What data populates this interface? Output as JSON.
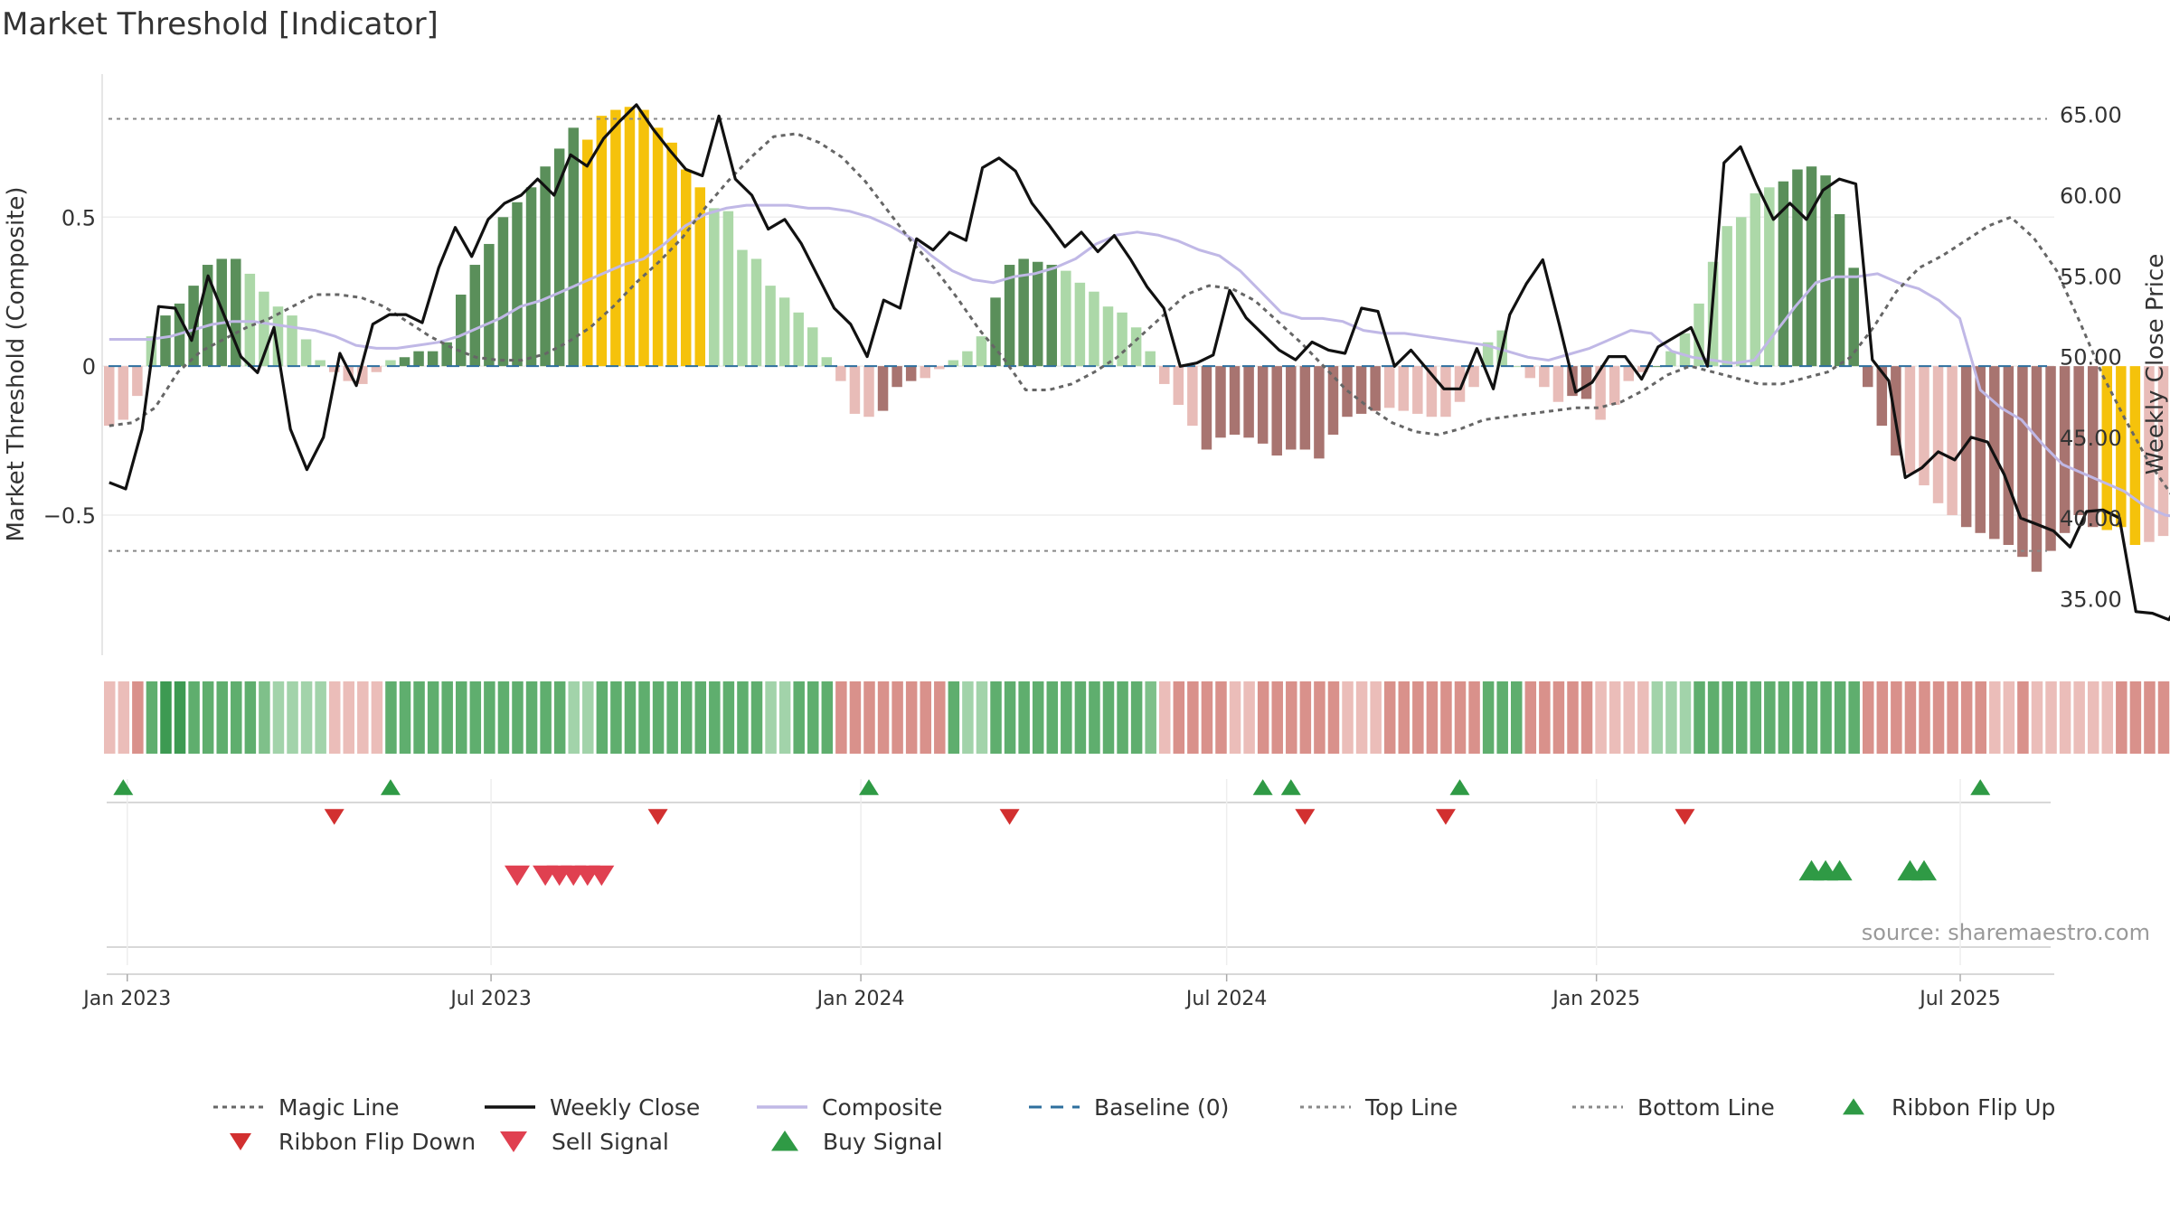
{
  "title": "Market Threshold [Indicator]",
  "source": "source: sharemaestro.com",
  "colors": {
    "strong_up": "#5a8f5a",
    "weak_up": "#acd8a8",
    "strong_down": "#a87470",
    "weak_down": "#e8bcb8",
    "extreme": "#f5c20b",
    "weekly_close": "#111111",
    "composite": "#c0b8e6",
    "magic": "#666666",
    "baseline": "#2e6f9e",
    "thresholds": "#888888",
    "signal_up": "#2f9a45",
    "signal_down": "#d23030",
    "sell": "#e04050"
  },
  "chart_data": {
    "type": "bar",
    "x_start": "2022-12-23",
    "x_step_days": 7,
    "x_ticks": [
      "Jan 2023",
      "Jul 2023",
      "Jan 2024",
      "Jul 2024",
      "Jan 2025",
      "Jul 2025"
    ],
    "x_tick_dates": [
      "2023-01-01",
      "2023-07-01",
      "2024-01-01",
      "2024-07-01",
      "2025-01-01",
      "2025-07-01"
    ],
    "ylabel_left": "Market Threshold (Composite)",
    "ylabel_right": "Weekly Close Price",
    "ylim_left": [
      -0.97,
      0.98
    ],
    "ylim_right": [
      31.5,
      67.5
    ],
    "yticks_left": [
      0.5,
      0,
      -0.5
    ],
    "yticks_left_labels": [
      "0.5",
      "0",
      "−0.5"
    ],
    "yticks_right": [
      65,
      60,
      55,
      50,
      45,
      40,
      35
    ],
    "yticks_right_labels": [
      "65.00",
      "60.00",
      "55.00",
      "50.00",
      "45.00",
      "40.00",
      "35.00"
    ],
    "top_line": 0.83,
    "bottom_line": -0.62,
    "grid": true,
    "bar_values": [
      -0.2,
      -0.18,
      -0.1,
      0.1,
      0.17,
      0.21,
      0.27,
      0.34,
      0.36,
      0.36,
      0.31,
      0.25,
      0.2,
      0.17,
      0.09,
      0.02,
      -0.02,
      -0.05,
      -0.06,
      -0.02,
      0.02,
      0.03,
      0.05,
      0.05,
      0.08,
      0.24,
      0.34,
      0.41,
      0.5,
      0.55,
      0.6,
      0.67,
      0.73,
      0.8,
      0.76,
      0.84,
      0.86,
      0.87,
      0.86,
      0.8,
      0.75,
      0.66,
      0.6,
      0.53,
      0.52,
      0.39,
      0.36,
      0.27,
      0.23,
      0.18,
      0.13,
      0.03,
      -0.05,
      -0.16,
      -0.17,
      -0.15,
      -0.07,
      -0.05,
      -0.04,
      -0.01,
      0.02,
      0.05,
      0.1,
      0.23,
      0.34,
      0.36,
      0.35,
      0.34,
      0.32,
      0.28,
      0.25,
      0.2,
      0.18,
      0.13,
      0.05,
      -0.06,
      -0.13,
      -0.2,
      -0.28,
      -0.24,
      -0.23,
      -0.24,
      -0.26,
      -0.3,
      -0.28,
      -0.28,
      -0.31,
      -0.23,
      -0.17,
      -0.16,
      -0.15,
      -0.14,
      -0.15,
      -0.16,
      -0.17,
      -0.17,
      -0.12,
      -0.07,
      0.08,
      0.12,
      0.0,
      -0.04,
      -0.07,
      -0.12,
      -0.1,
      -0.11,
      -0.18,
      -0.13,
      -0.05,
      -0.02,
      0.0,
      0.05,
      0.11,
      0.21,
      0.35,
      0.47,
      0.5,
      0.58,
      0.6,
      0.62,
      0.66,
      0.67,
      0.64,
      0.51,
      0.33,
      -0.07,
      -0.2,
      -0.3,
      -0.36,
      -0.4,
      -0.46,
      -0.5,
      -0.54,
      -0.56,
      -0.58,
      -0.6,
      -0.64,
      -0.69,
      -0.62,
      -0.56,
      -0.5,
      -0.54,
      -0.55,
      -0.54,
      -0.6,
      -0.59,
      -0.57,
      -0.5,
      -0.42,
      -0.36,
      -0.32,
      -0.27,
      -0.22,
      -0.18,
      -0.12,
      -0.06,
      0.0,
      0.06,
      0.16,
      0.25,
      0.33,
      0.37,
      0.41,
      0.36,
      0.39,
      0.42,
      0.43,
      0.44,
      0.43,
      0.41,
      0.33,
      0.25
    ],
    "bar_color_codes": "WWWWSSSSSSWWWWWWWWWWWSSSSSSSSSSSSSEEEEEEEEEWWWWWWWWWWWWSSSWWWWWSSSSSWWWWWWWWWWSSSSSSSSSSSSSWWWWWWWWWWWWWSSWWWWSWWWWWWWWSSSSSSSSSWWWWSSSSSSSSSSEEEWWSSSSEEEWWWWWWWWWWWSSSSSSSSSSWWWWWW",
    "series": [
      {
        "name": "Weekly Close",
        "axis": "right",
        "values": [
          42.2,
          41.8,
          45.5,
          53.1,
          53.0,
          51.0,
          55.0,
          52.5,
          50.0,
          49.0,
          51.8,
          45.5,
          43.0,
          45.0,
          50.2,
          48.2,
          52.0,
          52.6,
          52.6,
          52.1,
          55.5,
          58.0,
          56.2,
          58.5,
          59.5,
          60.0,
          61.0,
          60.0,
          62.5,
          61.8,
          63.5,
          64.6,
          65.6,
          64.1,
          62.8,
          61.6,
          61.2,
          64.9,
          61.0,
          60.0,
          57.9,
          58.5,
          57.0,
          55.0,
          53.0,
          52.0,
          50.0,
          53.5,
          53.0,
          57.3,
          56.6,
          57.7,
          57.2,
          61.7,
          62.3,
          61.5,
          59.5,
          58.2,
          56.8,
          57.7,
          56.5,
          57.5,
          56.0,
          54.3,
          53.0,
          49.4,
          49.6,
          50.1,
          54.1,
          52.4,
          51.4,
          50.4,
          49.8,
          50.9,
          50.4,
          50.2,
          53.0,
          52.8,
          49.4,
          50.4,
          49.2,
          48.0,
          48.0,
          50.5,
          48.0,
          52.6,
          54.5,
          56.0,
          52.0,
          47.8,
          48.4,
          50.0,
          50.0,
          48.6,
          50.6,
          51.2,
          51.8,
          49.4,
          62.0,
          63.0,
          60.6,
          58.5,
          59.5,
          58.5,
          60.3,
          61.0,
          60.7,
          49.8,
          48.5,
          42.5,
          43.1,
          44.1,
          43.6,
          45.0,
          44.7,
          42.7,
          40.0,
          39.6,
          39.2,
          38.2,
          40.4,
          40.5,
          40.0,
          34.2,
          34.1,
          33.7,
          35.5,
          37.3,
          39.6,
          42.5,
          40.5,
          41.3,
          42.2,
          42.8,
          45.3,
          50.5,
          51.1,
          50.4,
          52.5,
          47.8,
          50.0,
          52.5,
          54.6,
          52.7,
          52.7,
          51.2,
          49.7
        ]
      },
      {
        "name": "Composite",
        "axis": "left",
        "values": [
          0.09,
          0.09,
          0.09,
          0.1,
          0.12,
          0.14,
          0.15,
          0.15,
          0.14,
          0.13,
          0.12,
          0.1,
          0.07,
          0.06,
          0.06,
          0.07,
          0.08,
          0.1,
          0.13,
          0.16,
          0.2,
          0.22,
          0.25,
          0.28,
          0.31,
          0.34,
          0.36,
          0.41,
          0.47,
          0.51,
          0.53,
          0.54,
          0.54,
          0.54,
          0.53,
          0.53,
          0.52,
          0.5,
          0.47,
          0.43,
          0.37,
          0.32,
          0.29,
          0.28,
          0.3,
          0.31,
          0.33,
          0.36,
          0.41,
          0.44,
          0.45,
          0.44,
          0.42,
          0.39,
          0.37,
          0.32,
          0.25,
          0.18,
          0.16,
          0.16,
          0.15,
          0.12,
          0.11,
          0.11,
          0.1,
          0.09,
          0.08,
          0.07,
          0.05,
          0.03,
          0.02,
          0.04,
          0.06,
          0.09,
          0.12,
          0.11,
          0.05,
          0.03,
          0.02,
          0.01,
          0.02,
          0.11,
          0.2,
          0.28,
          0.3,
          0.3,
          0.31,
          0.28,
          0.26,
          0.22,
          0.16,
          -0.08,
          -0.14,
          -0.18,
          -0.26,
          -0.33,
          -0.36,
          -0.39,
          -0.42,
          -0.47,
          -0.5,
          -0.51,
          -0.53,
          -0.53,
          -0.52,
          -0.49,
          -0.41,
          -0.35,
          -0.3,
          -0.23,
          -0.18,
          -0.16,
          -0.14,
          -0.11,
          -0.05,
          -0.02,
          -0.01,
          0.0
        ]
      },
      {
        "name": "Magic Line",
        "axis": "left",
        "values": [
          -0.2,
          -0.19,
          -0.14,
          -0.02,
          0.05,
          0.09,
          0.13,
          0.16,
          0.2,
          0.24,
          0.24,
          0.23,
          0.2,
          0.15,
          0.1,
          0.06,
          0.03,
          0.02,
          0.02,
          0.04,
          0.08,
          0.13,
          0.2,
          0.28,
          0.35,
          0.43,
          0.53,
          0.62,
          0.7,
          0.77,
          0.78,
          0.75,
          0.7,
          0.62,
          0.52,
          0.42,
          0.33,
          0.23,
          0.12,
          0.03,
          -0.08,
          -0.08,
          -0.06,
          -0.02,
          0.03,
          0.1,
          0.17,
          0.24,
          0.27,
          0.26,
          0.22,
          0.15,
          0.08,
          0.0,
          -0.08,
          -0.14,
          -0.19,
          -0.22,
          -0.23,
          -0.21,
          -0.18,
          -0.17,
          -0.16,
          -0.15,
          -0.14,
          -0.14,
          -0.12,
          -0.08,
          -0.03,
          0.0,
          -0.02,
          -0.04,
          -0.06,
          -0.06,
          -0.04,
          -0.02,
          0.03,
          0.13,
          0.25,
          0.33,
          0.37,
          0.42,
          0.47,
          0.5,
          0.43,
          0.32,
          0.15,
          -0.03,
          -0.18,
          -0.32,
          -0.43,
          -0.52,
          -0.58,
          -0.62,
          -0.6,
          -0.54,
          -0.45,
          -0.36,
          -0.26,
          -0.14,
          0.02,
          0.14,
          0.25,
          0.33,
          0.35,
          0.36
        ]
      }
    ],
    "ribbon_levels": "113344333332111111113333333333333113333333333331133333333333311333333333332133331133333311133333333333333311111113333333333333333333331131111113333333333333333333",
    "ribbon_flip_up_weeks": [
      1,
      20,
      54,
      82,
      84,
      96,
      133
    ],
    "ribbon_flip_down_weeks": [
      16,
      39,
      64,
      85,
      95,
      112
    ],
    "sell_signal_weeks": [
      29,
      31,
      32,
      33,
      34,
      35
    ],
    "buy_signal_weeks": [
      121,
      122,
      123,
      128,
      129
    ],
    "legend_placement": "bottom",
    "legend": [
      {
        "label": "Magic Line",
        "marker": "dotted-line"
      },
      {
        "label": "Weekly Close",
        "marker": "solid-line"
      },
      {
        "label": "Composite",
        "marker": "lavender-line"
      },
      {
        "label": "Baseline (0)",
        "marker": "dashed-line"
      },
      {
        "label": "Top Line",
        "marker": "dotted-line"
      },
      {
        "label": "Bottom Line",
        "marker": "dotted-line"
      },
      {
        "label": "Ribbon Flip Up",
        "marker": "triangle-up-green"
      },
      {
        "label": "Ribbon Flip Down",
        "marker": "triangle-down-red"
      },
      {
        "label": "Sell Signal",
        "marker": "triangle-down-pink"
      },
      {
        "label": "Buy Signal",
        "marker": "triangle-up-green"
      }
    ]
  }
}
